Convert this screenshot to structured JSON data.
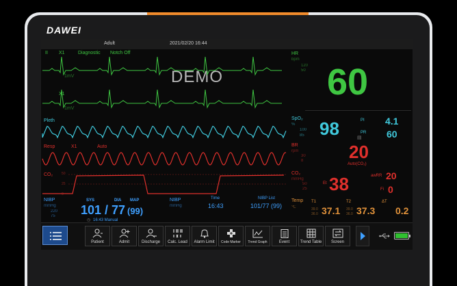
{
  "brand": "DAWEI",
  "header": {
    "patient_type": "Adult",
    "datetime": "2021/02/20 16:44"
  },
  "watermark": "DEMO",
  "ecg": {
    "lead": "II",
    "gain": "X1",
    "mode": "Diagnostic",
    "filter": "Notch Off",
    "scale": "1mV",
    "lead2_gain": "X1",
    "lead2_scale": "1mV",
    "hr_label": "HR",
    "hr_unit": "bpm",
    "hr_hi": "120",
    "hr_lo": "50",
    "hr_value": "60"
  },
  "spo2": {
    "wave_label": "Pleth",
    "label": "SpO₂",
    "unit": "%",
    "hi": "100",
    "lo": "85",
    "value": "98",
    "pi_label": "PI",
    "pi_value": "4.1",
    "pr_label": "PR",
    "pr_value": "60"
  },
  "resp": {
    "label": "Resp",
    "gain": "X1",
    "mode": "Auto",
    "br_label": "BR",
    "br_unit": "rpm",
    "br_hi": "30",
    "br_lo": "8",
    "br_value": "20",
    "br_source": "Auto(CO₂)"
  },
  "co2": {
    "label": "CO₂",
    "side_label": "CO₂",
    "unit": "mmHg",
    "hi": "50",
    "lo": "25",
    "scale_top": "50",
    "scale_mid": "25",
    "scale_bot": "0",
    "et_label": "Et",
    "et_value": "38",
    "awrr_label": "awRR",
    "awrr_value": "20",
    "fi_label": "Fi",
    "fi_value": "0"
  },
  "nibp": {
    "label": "NIBP",
    "unit": "mmHg",
    "lim1": "220",
    "lim2": "75",
    "sys_label": "SYS",
    "dia_label": "DIA",
    "map_label": "MAP",
    "value": "101 / 77",
    "map_value": "(99)",
    "time_mode": "16:43  Manual",
    "list_label": "NIBP",
    "list_unit": "mmHg",
    "time_label": "Time",
    "time_value": "16:43",
    "list_title": "NIBP List",
    "list_value": "101/77 (99)"
  },
  "temp": {
    "label": "Temp",
    "unit": "℃",
    "t1_label": "T1",
    "t1_hi": "39.0",
    "t1_lo": "36.0",
    "t1_value": "37.1",
    "t2_label": "T2",
    "t2_hi": "39.0",
    "t2_lo": "36.0",
    "t2_value": "37.3",
    "dt_label": "ΔT",
    "dt_value": "0.2"
  },
  "toolbar": {
    "buttons": [
      {
        "label": "Patient"
      },
      {
        "label": "Admit"
      },
      {
        "label": "Discharge"
      },
      {
        "label": "Calc. Lead"
      },
      {
        "label": "Alarm Limit"
      },
      {
        "label": "Code Marker"
      },
      {
        "label": "Trend Graph"
      },
      {
        "label": "Event"
      },
      {
        "label": "Trend Table"
      },
      {
        "label": "Screen"
      }
    ]
  },
  "colors": {
    "ecg": "#3fc642",
    "spo2": "#40c9dc",
    "resp": "#e0302c",
    "co2": "#e0302c",
    "temp": "#e0913a",
    "nibp": "#3fa0ff",
    "notch": "#f28c2c",
    "battery": "#30c030"
  }
}
